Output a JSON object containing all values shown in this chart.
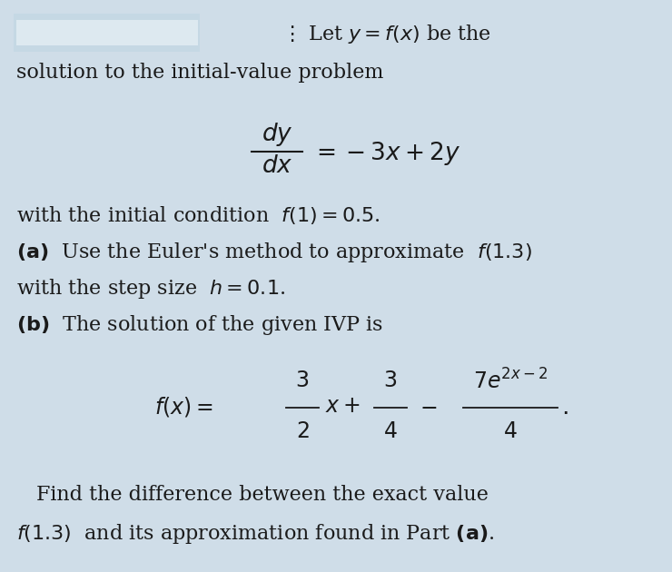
{
  "background_color": "#cfdde8",
  "fig_width": 7.4,
  "fig_height": 6.3,
  "dpi": 100,
  "text_color": "#1a1a1a",
  "font_size_body": 15.5,
  "font_size_math": 17
}
